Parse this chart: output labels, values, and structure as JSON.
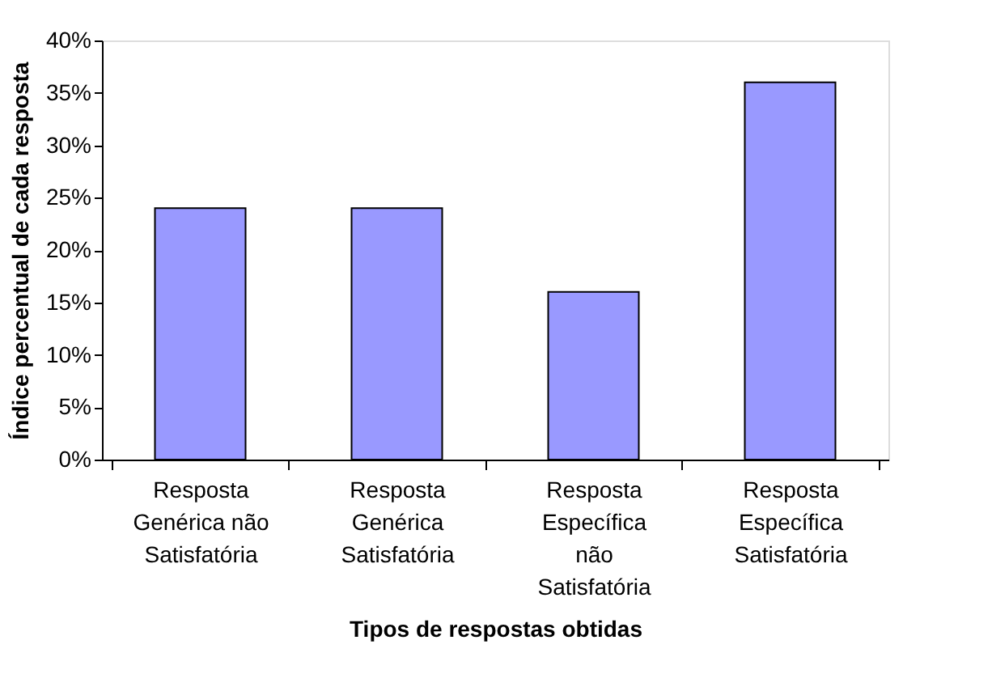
{
  "chart_data": {
    "type": "bar",
    "xlabel": "Tipos de respostas obtidas",
    "ylabel": "Índice percentual de cada resposta",
    "categories": [
      "Resposta Genérica não Satisfatória",
      "Resposta Genérica Satisfatória",
      "Resposta Específica não Satisfatória",
      "Resposta Específica Satisfatória"
    ],
    "values": [
      24,
      24,
      16,
      36
    ],
    "color": "#9999ff",
    "ylim": [
      0,
      40
    ],
    "yticks": [
      {
        "value": 0,
        "label": "0%"
      },
      {
        "value": 5,
        "label": "5%"
      },
      {
        "value": 10,
        "label": "10%"
      },
      {
        "value": 15,
        "label": "15%"
      },
      {
        "value": 20,
        "label": "20%"
      },
      {
        "value": 25,
        "label": "25%"
      },
      {
        "value": 30,
        "label": "30%"
      },
      {
        "value": 35,
        "label": "35%"
      },
      {
        "value": 40,
        "label": "40%"
      }
    ],
    "grid": false
  }
}
